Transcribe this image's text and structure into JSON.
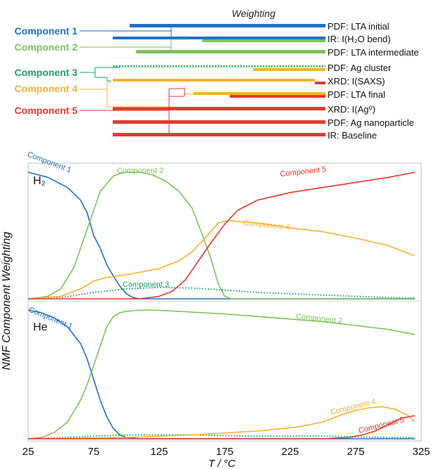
{
  "dendrogram": {
    "header": "Weighting",
    "components": [
      {
        "label": "Component 1",
        "color": "#1f72c6"
      },
      {
        "label": "Component 2",
        "color": "#7cc35a"
      },
      {
        "label": "Component 3",
        "color": "#1aa461"
      },
      {
        "label": "Component 4",
        "color": "#f3b32f"
      },
      {
        "label": "Component 5",
        "color": "#e23a30"
      }
    ],
    "leaves": [
      {
        "label": "PDF: LTA initial",
        "bars": [
          {
            "color": "#1f72c6",
            "from": 0.08,
            "to": 1.0
          }
        ]
      },
      {
        "label": "IR: I(H₂O bend)",
        "bars": [
          {
            "color": "#1f72c6",
            "from": 0.0,
            "to": 1.0
          },
          {
            "color": "#7cc35a",
            "from": 0.42,
            "to": 1.0
          }
        ]
      },
      {
        "label": "PDF: LTA intermediate",
        "bars": [
          {
            "color": "#7cc35a",
            "from": 0.11,
            "to": 1.0
          }
        ]
      },
      {
        "label": "PDF: Ag cluster",
        "bars": [
          {
            "color": "#1aa461",
            "from": 0.0,
            "to": 1.0,
            "pattern": "dotted"
          },
          {
            "color": "#f3b32f",
            "from": 0.66,
            "to": 1.0
          }
        ]
      },
      {
        "label": "XRD: I(SAXS)",
        "bars": [
          {
            "color": "#f3b32f",
            "from": 0.0,
            "to": 0.95
          },
          {
            "color": "#e23a30",
            "from": 0.95,
            "to": 1.0
          }
        ]
      },
      {
        "label": "PDF: LTA final",
        "bars": [
          {
            "color": "#f3b32f",
            "from": 0.38,
            "to": 1.0
          },
          {
            "color": "#e23a30",
            "from": 0.55,
            "to": 1.0
          }
        ]
      },
      {
        "label": "XRD: I(Ag⁰)",
        "bars": [
          {
            "color": "#e23a30",
            "from": 0.0,
            "to": 1.0
          }
        ]
      },
      {
        "label": "PDF: Ag nanoparticle",
        "bars": [
          {
            "color": "#e23a30",
            "from": 0.0,
            "to": 1.0
          }
        ]
      },
      {
        "label": "IR: Baseline",
        "bars": [
          {
            "color": "#e23a30",
            "from": 0.0,
            "to": 1.0
          }
        ]
      }
    ]
  },
  "chart_data": {
    "type": "line",
    "xlabel": "T / °C",
    "ylabel": "NMF Component Weighting",
    "xlim": [
      25,
      325
    ],
    "x_ticks": [
      "25",
      "75",
      "125",
      "175",
      "225",
      "275",
      "325"
    ],
    "panels": [
      {
        "gas": "H₂",
        "ylim": [
          0,
          1
        ],
        "series": [
          {
            "name": "Component 1",
            "color": "#1f72c6",
            "dash": "solid",
            "x": [
              25,
              40,
              55,
              65,
              70,
              75,
              80,
              85,
              90,
              95,
              100,
              105,
              110,
              115,
              125,
              150,
              200,
              250,
              300,
              320
            ],
            "y": [
              1.0,
              0.96,
              0.88,
              0.78,
              0.68,
              0.5,
              0.4,
              0.27,
              0.18,
              0.1,
              0.04,
              0.01,
              0.0,
              0.0,
              0.0,
              0.0,
              0.0,
              0.0,
              0.0,
              0.0
            ]
          },
          {
            "name": "Component 2",
            "color": "#7cc35a",
            "dash": "solid",
            "x": [
              25,
              40,
              50,
              60,
              70,
              80,
              90,
              95,
              100,
              110,
              120,
              130,
              140,
              150,
              160,
              165,
              170,
              175,
              180,
              200,
              250,
              320
            ],
            "y": [
              0.0,
              0.02,
              0.08,
              0.25,
              0.55,
              0.85,
              0.97,
              0.99,
              1.0,
              1.0,
              0.98,
              0.93,
              0.85,
              0.72,
              0.45,
              0.3,
              0.12,
              0.02,
              0.0,
              0.0,
              0.0,
              0.0
            ]
          },
          {
            "name": "Component 3",
            "color": "#1aa461",
            "dash": "dotted",
            "x": [
              25,
              50,
              75,
              100,
              125,
              150,
              175,
              200,
              250,
              300,
              320
            ],
            "y": [
              0.0,
              0.01,
              0.05,
              0.08,
              0.09,
              0.085,
              0.07,
              0.05,
              0.03,
              0.01,
              0.005
            ]
          },
          {
            "name": "Component 4",
            "color": "#f3b32f",
            "dash": "solid",
            "x": [
              25,
              50,
              65,
              75,
              85,
              100,
              125,
              140,
              150,
              160,
              170,
              178,
              185,
              200,
              225,
              250,
              275,
              300,
              320
            ],
            "y": [
              0.0,
              0.02,
              0.08,
              0.14,
              0.17,
              0.19,
              0.24,
              0.3,
              0.37,
              0.48,
              0.6,
              0.62,
              0.61,
              0.6,
              0.56,
              0.53,
              0.48,
              0.42,
              0.34
            ]
          },
          {
            "name": "Component 5",
            "color": "#e23a30",
            "dash": "solid",
            "x": [
              25,
              75,
              110,
              125,
              135,
              145,
              155,
              165,
              175,
              185,
              200,
              225,
              250,
              275,
              300,
              320
            ],
            "y": [
              0.0,
              0.0,
              0.0,
              0.02,
              0.06,
              0.15,
              0.3,
              0.45,
              0.59,
              0.7,
              0.78,
              0.84,
              0.88,
              0.92,
              0.96,
              1.0
            ]
          }
        ]
      },
      {
        "gas": "He",
        "ylim": [
          0,
          1
        ],
        "series": [
          {
            "name": "Component 1",
            "color": "#1f72c6",
            "dash": "solid",
            "x": [
              25,
              35,
              45,
              55,
              65,
              70,
              75,
              80,
              85,
              90,
              95,
              100,
              110,
              125,
              200,
              320
            ],
            "y": [
              1.0,
              0.98,
              0.94,
              0.87,
              0.74,
              0.62,
              0.46,
              0.3,
              0.17,
              0.08,
              0.03,
              0.01,
              0.0,
              0.0,
              0.0,
              0.0
            ]
          },
          {
            "name": "Component 2",
            "color": "#7cc35a",
            "dash": "solid",
            "x": [
              25,
              35,
              45,
              55,
              65,
              70,
              75,
              80,
              85,
              90,
              95,
              100,
              110,
              120,
              140,
              175,
              200,
              225,
              250,
              275,
              300,
              320
            ],
            "y": [
              0.0,
              0.01,
              0.05,
              0.13,
              0.3,
              0.42,
              0.57,
              0.72,
              0.87,
              0.95,
              0.98,
              0.99,
              1.0,
              1.0,
              0.99,
              0.97,
              0.95,
              0.93,
              0.91,
              0.88,
              0.85,
              0.81
            ]
          },
          {
            "name": "Component 3",
            "color": "#1aa461",
            "dash": "dotted",
            "x": [
              25,
              50,
              75,
              100,
              125,
              150,
              200,
              250,
              300,
              320
            ],
            "y": [
              0.0,
              0.01,
              0.02,
              0.03,
              0.03,
              0.03,
              0.02,
              0.02,
              0.01,
              0.01
            ]
          },
          {
            "name": "Component 4",
            "color": "#f3b32f",
            "dash": "solid",
            "x": [
              25,
              100,
              150,
              200,
              230,
              250,
              265,
              275,
              285,
              295,
              305,
              315,
              320
            ],
            "y": [
              0.0,
              0.01,
              0.03,
              0.06,
              0.09,
              0.13,
              0.19,
              0.22,
              0.24,
              0.25,
              0.23,
              0.18,
              0.13
            ]
          },
          {
            "name": "Component 5",
            "color": "#e23a30",
            "dash": "solid",
            "x": [
              25,
              250,
              270,
              280,
              290,
              300,
              310,
              320
            ],
            "y": [
              0.0,
              0.0,
              0.01,
              0.03,
              0.06,
              0.11,
              0.16,
              0.18
            ]
          }
        ]
      }
    ],
    "curve_labels": [
      {
        "panel": 0,
        "text": "Component 1",
        "color": "#1f72c6"
      },
      {
        "panel": 0,
        "text": "Component 2",
        "color": "#7cc35a"
      },
      {
        "panel": 0,
        "text": "Component 3",
        "color": "#1aa461"
      },
      {
        "panel": 0,
        "text": "Component 4",
        "color": "#f3b32f"
      },
      {
        "panel": 0,
        "text": "Component 5",
        "color": "#e23a30"
      },
      {
        "panel": 1,
        "text": "Component 1",
        "color": "#1f72c6"
      },
      {
        "panel": 1,
        "text": "Component 2",
        "color": "#7cc35a"
      },
      {
        "panel": 1,
        "text": "Component 4",
        "color": "#f3b32f"
      },
      {
        "panel": 1,
        "text": "Component 5",
        "color": "#e23a30"
      }
    ]
  }
}
